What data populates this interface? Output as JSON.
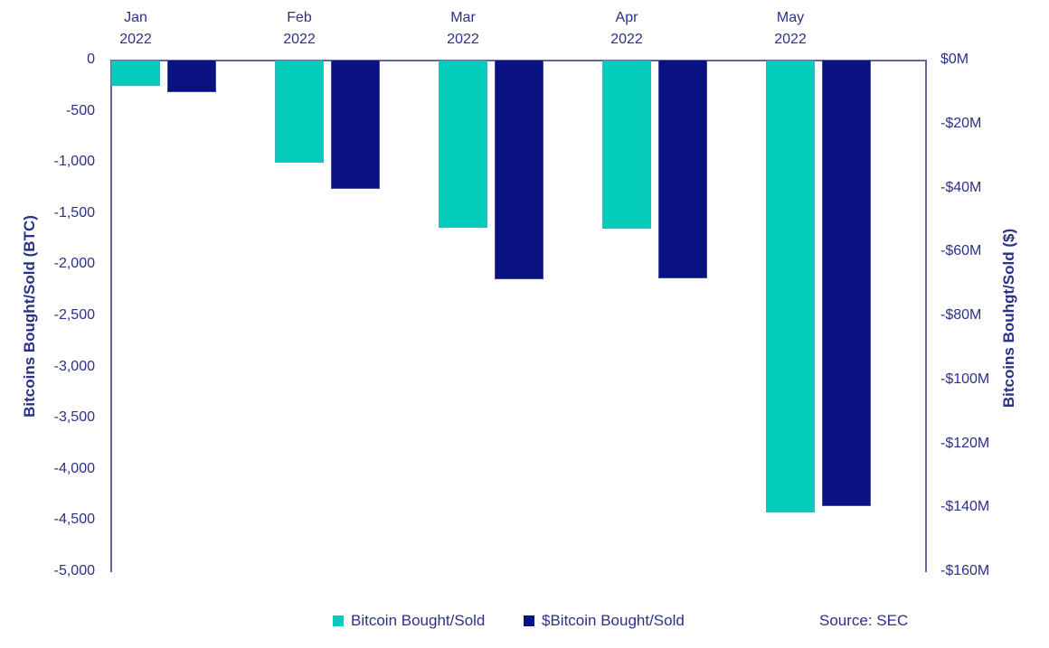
{
  "chart_data": {
    "type": "bar",
    "title": "",
    "categories": [
      {
        "month": "Jan",
        "year": "2022"
      },
      {
        "month": "Feb",
        "year": "2022"
      },
      {
        "month": "Mar",
        "year": "2022"
      },
      {
        "month": "Apr",
        "year": "2022"
      },
      {
        "month": "May",
        "year": "2022"
      }
    ],
    "series": [
      {
        "name": "Bitcoin Bought/Sold",
        "axis": "left",
        "unit": "BTC",
        "color": "#04cdbb",
        "values": [
          -250,
          -1000,
          -1630,
          -1645,
          -4420
        ]
      },
      {
        "name": "$Bitcoin Bought/Sold",
        "axis": "right",
        "unit": "$M",
        "color": "#081280",
        "values": [
          -10,
          -40,
          -68.5,
          -68,
          -139.5
        ]
      }
    ],
    "left_axis": {
      "label": "Bitcoins Bought/Sold (BTC)",
      "range": [
        0,
        -5000
      ],
      "ticks": [
        "0",
        "-500",
        "-1,000",
        "-1,500",
        "-2,000",
        "-2,500",
        "-3,000",
        "-3,500",
        "-4,000",
        "-4,500",
        "-5,000"
      ]
    },
    "right_axis": {
      "label": "Bitcoins Bouhgt/Sold ($)",
      "range": [
        0,
        -160
      ],
      "ticks": [
        "$0M",
        "-$20M",
        "-$40M",
        "-$60M",
        "-$80M",
        "-$100M",
        "-$120M",
        "-$140M",
        "-$160M"
      ]
    },
    "legend": [
      {
        "label": "Bitcoin Bought/Sold",
        "color": "#04cdbb"
      },
      {
        "label": "$Bitcoin Bought/Sold",
        "color": "#081280"
      }
    ],
    "source": "Source: SEC",
    "colors": {
      "text": "#2b3088",
      "spine": "#62679f"
    },
    "layout_hints": {
      "legend_position": "bottom",
      "grid": false,
      "all_values_negative": true
    }
  }
}
